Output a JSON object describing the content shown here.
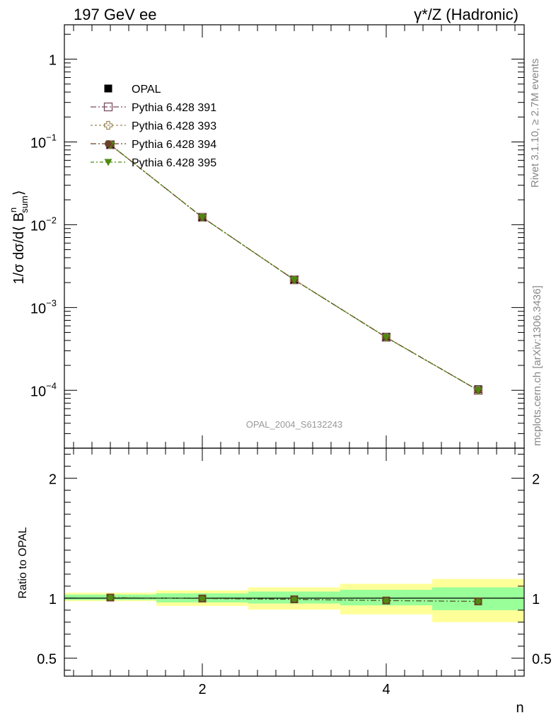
{
  "header": {
    "left": "197 GeV ee",
    "right": "γ*/Z (Hadronic)"
  },
  "side_labels": {
    "rivet": "Rivet 3.1.10, ≥ 2.7M events",
    "mcplots": "mcplots.cern.ch [arXiv:1306.3436]"
  },
  "watermark": "OPAL_2004_S6132243",
  "chart_data": [
    {
      "type": "line",
      "panel": "main",
      "ylabel": {
        "prefix": "1/σ dσ/d⟨ B",
        "sup": "n",
        "sub": "sum",
        "suffix": "⟩"
      },
      "yscale": "log",
      "xlim": [
        0.5,
        5.5
      ],
      "ylim": [
        2e-05,
        2.6
      ],
      "y_ticks": [
        {
          "value": 1,
          "label": "1"
        },
        {
          "value": 0.1,
          "base": "10",
          "exp": "−1"
        },
        {
          "value": 0.01,
          "base": "10",
          "exp": "−2"
        },
        {
          "value": 0.001,
          "base": "10",
          "exp": "−3"
        },
        {
          "value": 0.0001,
          "base": "10",
          "exp": "−4"
        }
      ],
      "x": [
        1,
        2,
        3,
        4,
        5
      ],
      "series": [
        {
          "name": "OPAL",
          "values": [
            0.092,
            0.0123,
            0.00218,
            0.000445,
            0.000103
          ],
          "color": "#000000",
          "marker": "square-filled"
        },
        {
          "name": "Pythia 6.428 391",
          "values": [
            0.0925,
            0.0123,
            0.00216,
            0.000437,
            0.0001
          ],
          "color": "#7a4a5e",
          "marker": "square-open"
        },
        {
          "name": "Pythia 6.428 393",
          "values": [
            0.0925,
            0.0123,
            0.00216,
            0.000436,
            0.0001
          ],
          "color": "#9c8a5c",
          "marker": "cross-open"
        },
        {
          "name": "Pythia 6.428 394",
          "values": [
            0.0925,
            0.0123,
            0.00216,
            0.000436,
            0.0001
          ],
          "color": "#6b4226",
          "marker": "circle-filled"
        },
        {
          "name": "Pythia 6.428 395",
          "values": [
            0.0925,
            0.0123,
            0.00216,
            0.000436,
            0.0001
          ],
          "color": "#4f8a10",
          "marker": "triangle-down-filled"
        }
      ],
      "legend": "top-left"
    },
    {
      "type": "line",
      "panel": "ratio",
      "ylabel": "Ratio to OPAL",
      "xlabel": "n",
      "xlim": [
        0.5,
        5.5
      ],
      "ylim": [
        0.35,
        2.25
      ],
      "x_ticks": [
        2,
        4
      ],
      "y_ticks": [
        0.5,
        1,
        2
      ],
      "bins": [
        [
          0.5,
          1.5
        ],
        [
          1.5,
          2.5
        ],
        [
          2.5,
          3.5
        ],
        [
          3.5,
          4.5
        ],
        [
          4.5,
          5.5
        ]
      ],
      "band_inner": [
        [
          0.985,
          1.03
        ],
        [
          0.965,
          1.04
        ],
        [
          0.955,
          1.055
        ],
        [
          0.94,
          1.07
        ],
        [
          0.9,
          1.09
        ]
      ],
      "band_outer": [
        [
          0.975,
          1.045
        ],
        [
          0.935,
          1.065
        ],
        [
          0.905,
          1.09
        ],
        [
          0.865,
          1.12
        ],
        [
          0.8,
          1.16
        ]
      ],
      "x": [
        1,
        2,
        3,
        4,
        5
      ],
      "values": [
        1.005,
        0.997,
        0.99,
        0.98,
        0.973
      ]
    }
  ]
}
